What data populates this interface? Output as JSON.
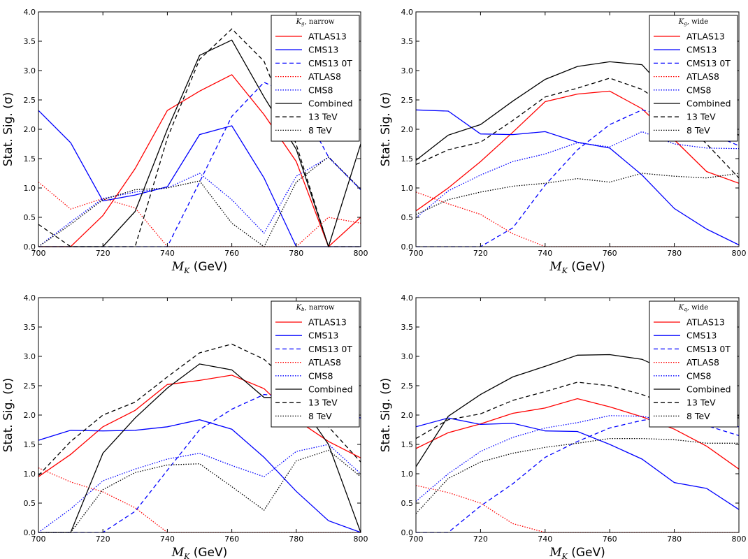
{
  "figure": {
    "ylabel": "Stat. Sig. (σ)",
    "xlabel_sym": "M",
    "xlabel_sub": "K",
    "xlabel_unit": " (GeV)"
  },
  "colors": {
    "red": "#ff0000",
    "blue": "#0000ff",
    "black": "#000000"
  },
  "chart_data": [
    {
      "type": "line",
      "legend_title_sym": "K",
      "legend_title_sub": "g",
      "legend_title_rest": ", narrow",
      "legend_position": "top-right",
      "xlim": [
        700,
        800
      ],
      "ylim": [
        0,
        4.0
      ],
      "x": [
        700,
        710,
        720,
        730,
        740,
        750,
        760,
        770,
        780,
        790,
        800
      ],
      "xticks": [
        "700",
        "720",
        "740",
        "760",
        "780",
        "800"
      ],
      "yticks": [
        "0.0",
        "0.5",
        "1.0",
        "1.5",
        "2.0",
        "2.5",
        "3.0",
        "3.5",
        "4.0"
      ],
      "series": [
        {
          "name": "ATLAS13",
          "color": "red",
          "style": "solid",
          "values": [
            0,
            0,
            0.53,
            1.33,
            2.32,
            2.65,
            2.93,
            2.25,
            1.45,
            0,
            0.5
          ]
        },
        {
          "name": "CMS13",
          "color": "blue",
          "style": "solid",
          "values": [
            2.32,
            1.77,
            0.78,
            0.88,
            1.02,
            1.91,
            2.06,
            1.17,
            0,
            0,
            0
          ]
        },
        {
          "name": "CMS13 0T",
          "color": "blue",
          "style": "dashed",
          "values": [
            0,
            0,
            0,
            0,
            0,
            1.1,
            2.22,
            2.8,
            2.55,
            1.53,
            0.97
          ]
        },
        {
          "name": "ATLAS8",
          "color": "red",
          "style": "dotted",
          "values": [
            1.1,
            0.64,
            0.82,
            0.66,
            0,
            0,
            0,
            0,
            0,
            0.5,
            0.4
          ]
        },
        {
          "name": "CMS8",
          "color": "blue",
          "style": "dotted",
          "values": [
            0,
            0.42,
            0.82,
            0.93,
            1.0,
            1.25,
            0.8,
            0.23,
            1.2,
            1.52,
            0.97
          ]
        },
        {
          "name": "Combined",
          "color": "black",
          "style": "solid",
          "values": [
            0,
            0,
            0,
            0.6,
            2.0,
            3.26,
            3.52,
            2.55,
            1.66,
            0,
            1.75
          ]
        },
        {
          "name": "13 TeV",
          "color": "black",
          "style": "dashed",
          "values": [
            0.38,
            0,
            0,
            0,
            1.85,
            3.19,
            3.71,
            3.16,
            1.74,
            0,
            0
          ]
        },
        {
          "name": "8 TeV",
          "color": "black",
          "style": "dotted",
          "values": [
            0,
            0.38,
            0.8,
            0.97,
            1.0,
            1.12,
            0.4,
            0,
            1.1,
            1.53,
            0.98
          ]
        }
      ]
    },
    {
      "type": "line",
      "legend_title_sym": "K",
      "legend_title_sub": "g",
      "legend_title_rest": ", wide",
      "legend_position": "top-right",
      "xlim": [
        700,
        800
      ],
      "ylim": [
        0,
        4.0
      ],
      "x": [
        700,
        710,
        720,
        730,
        740,
        750,
        760,
        770,
        780,
        790,
        800
      ],
      "xticks": [
        "700",
        "720",
        "740",
        "760",
        "780",
        "800"
      ],
      "yticks": [
        "0.0",
        "0.5",
        "1.0",
        "1.5",
        "2.0",
        "2.5",
        "3.0",
        "3.5",
        "4.0"
      ],
      "series": [
        {
          "name": "ATLAS13",
          "color": "red",
          "style": "solid",
          "values": [
            0.61,
            1.0,
            1.45,
            1.95,
            2.47,
            2.6,
            2.65,
            2.35,
            1.82,
            1.28,
            1.08
          ]
        },
        {
          "name": "CMS13",
          "color": "blue",
          "style": "solid",
          "values": [
            2.33,
            2.31,
            1.92,
            1.91,
            1.96,
            1.78,
            1.68,
            1.22,
            0.65,
            0.3,
            0.03
          ]
        },
        {
          "name": "CMS13 0T",
          "color": "blue",
          "style": "dashed",
          "values": [
            0,
            0,
            0,
            0.32,
            1.05,
            1.65,
            2.08,
            2.33,
            2.2,
            1.95,
            1.72
          ]
        },
        {
          "name": "ATLAS8",
          "color": "red",
          "style": "dotted",
          "values": [
            0.93,
            0.73,
            0.55,
            0.22,
            0,
            0,
            0,
            0,
            0,
            0,
            0
          ]
        },
        {
          "name": "CMS8",
          "color": "blue",
          "style": "dotted",
          "values": [
            0.49,
            0.95,
            1.22,
            1.45,
            1.58,
            1.77,
            1.7,
            1.96,
            1.75,
            1.68,
            1.67
          ]
        },
        {
          "name": "Combined",
          "color": "black",
          "style": "solid",
          "values": [
            1.47,
            1.9,
            2.08,
            2.48,
            2.85,
            3.07,
            3.15,
            3.1,
            2.5,
            2.2,
            1.9
          ]
        },
        {
          "name": "13 TeV",
          "color": "black",
          "style": "dashed",
          "values": [
            1.4,
            1.65,
            1.78,
            2.15,
            2.55,
            2.7,
            2.87,
            2.68,
            2.3,
            1.75,
            1.17
          ]
        },
        {
          "name": "8 TeV",
          "color": "black",
          "style": "dotted",
          "values": [
            0.55,
            0.8,
            0.93,
            1.03,
            1.08,
            1.16,
            1.1,
            1.25,
            1.2,
            1.17,
            1.25
          ]
        }
      ]
    },
    {
      "type": "line",
      "legend_title_sym": "K",
      "legend_title_sub": "b",
      "legend_title_rest": ", narrow",
      "legend_position": "top-right",
      "xlim": [
        700,
        800
      ],
      "ylim": [
        0,
        4.0
      ],
      "x": [
        700,
        710,
        720,
        730,
        740,
        750,
        760,
        770,
        780,
        790,
        800
      ],
      "xticks": [
        "700",
        "720",
        "740",
        "760",
        "780",
        "800"
      ],
      "yticks": [
        "0.0",
        "0.5",
        "1.0",
        "1.5",
        "2.0",
        "2.5",
        "3.0",
        "3.5",
        "4.0"
      ],
      "series": [
        {
          "name": "ATLAS13",
          "color": "red",
          "style": "solid",
          "values": [
            0.95,
            1.33,
            1.8,
            2.08,
            2.52,
            2.59,
            2.68,
            2.45,
            1.92,
            1.55,
            1.27
          ]
        },
        {
          "name": "CMS13",
          "color": "blue",
          "style": "solid",
          "values": [
            1.57,
            1.74,
            1.73,
            1.74,
            1.8,
            1.92,
            1.76,
            1.28,
            0.7,
            0.2,
            0
          ]
        },
        {
          "name": "CMS13 0T",
          "color": "blue",
          "style": "dashed",
          "values": [
            0,
            0,
            0,
            0.36,
            1.06,
            1.75,
            2.1,
            2.35,
            2.3,
            2.1,
            1.95
          ]
        },
        {
          "name": "ATLAS8",
          "color": "red",
          "style": "dotted",
          "values": [
            1.1,
            0.86,
            0.69,
            0.42,
            0,
            0,
            0,
            0,
            0,
            0,
            0
          ]
        },
        {
          "name": "CMS8",
          "color": "blue",
          "style": "dotted",
          "values": [
            0,
            0.4,
            0.88,
            1.08,
            1.25,
            1.35,
            1.14,
            0.95,
            1.38,
            1.5,
            1.0
          ]
        },
        {
          "name": "Combined",
          "color": "black",
          "style": "solid",
          "values": [
            0,
            0,
            1.35,
            1.95,
            2.46,
            2.87,
            2.77,
            2.3,
            2.3,
            1.5,
            0
          ]
        },
        {
          "name": "13 TeV",
          "color": "black",
          "style": "dashed",
          "values": [
            0.97,
            1.55,
            2.0,
            2.22,
            2.65,
            3.06,
            3.21,
            2.95,
            2.45,
            1.8,
            1.2
          ]
        },
        {
          "name": "8 TeV",
          "color": "black",
          "style": "dotted",
          "values": [
            0,
            0,
            0.73,
            1.02,
            1.15,
            1.17,
            0.78,
            0.38,
            1.22,
            1.4,
            0.95
          ]
        }
      ]
    },
    {
      "type": "line",
      "legend_title_sym": "K",
      "legend_title_sub": "q",
      "legend_title_rest": ", wide",
      "legend_position": "top-right",
      "xlim": [
        700,
        800
      ],
      "ylim": [
        0,
        4.0
      ],
      "x": [
        700,
        710,
        720,
        730,
        740,
        750,
        760,
        770,
        780,
        790,
        800
      ],
      "xticks": [
        "700",
        "720",
        "740",
        "760",
        "780",
        "800"
      ],
      "yticks": [
        "0.0",
        "0.5",
        "1.0",
        "1.5",
        "2.0",
        "2.5",
        "3.0",
        "3.5",
        "4.0"
      ],
      "series": [
        {
          "name": "ATLAS13",
          "color": "red",
          "style": "solid",
          "values": [
            1.43,
            1.7,
            1.85,
            2.03,
            2.12,
            2.28,
            2.14,
            1.97,
            1.76,
            1.47,
            1.08
          ]
        },
        {
          "name": "CMS13",
          "color": "blue",
          "style": "solid",
          "values": [
            1.8,
            1.95,
            1.84,
            1.86,
            1.73,
            1.72,
            1.5,
            1.25,
            0.85,
            0.75,
            0.39
          ]
        },
        {
          "name": "CMS13 0T",
          "color": "blue",
          "style": "dashed",
          "values": [
            0,
            0,
            0.45,
            0.83,
            1.28,
            1.55,
            1.78,
            1.91,
            1.98,
            1.82,
            1.65
          ]
        },
        {
          "name": "ATLAS8",
          "color": "red",
          "style": "dotted",
          "values": [
            0.8,
            0.68,
            0.5,
            0.15,
            0,
            0,
            0,
            0,
            0,
            0,
            0
          ]
        },
        {
          "name": "CMS8",
          "color": "blue",
          "style": "dotted",
          "values": [
            0.53,
            1.0,
            1.38,
            1.62,
            1.78,
            1.87,
            1.99,
            1.98,
            1.87,
            1.82,
            1.8
          ]
        },
        {
          "name": "Combined",
          "color": "black",
          "style": "solid",
          "values": [
            1.12,
            1.98,
            2.35,
            2.65,
            2.83,
            3.02,
            3.03,
            2.95,
            2.7,
            2.3,
            1.98
          ]
        },
        {
          "name": "13 TeV",
          "color": "black",
          "style": "dashed",
          "values": [
            1.6,
            1.92,
            2.02,
            2.25,
            2.4,
            2.56,
            2.5,
            2.35,
            2.15,
            2.05,
            1.95
          ]
        },
        {
          "name": "8 TeV",
          "color": "black",
          "style": "dotted",
          "values": [
            0.32,
            0.92,
            1.2,
            1.35,
            1.45,
            1.52,
            1.6,
            1.6,
            1.58,
            1.52,
            1.52
          ]
        }
      ]
    }
  ]
}
